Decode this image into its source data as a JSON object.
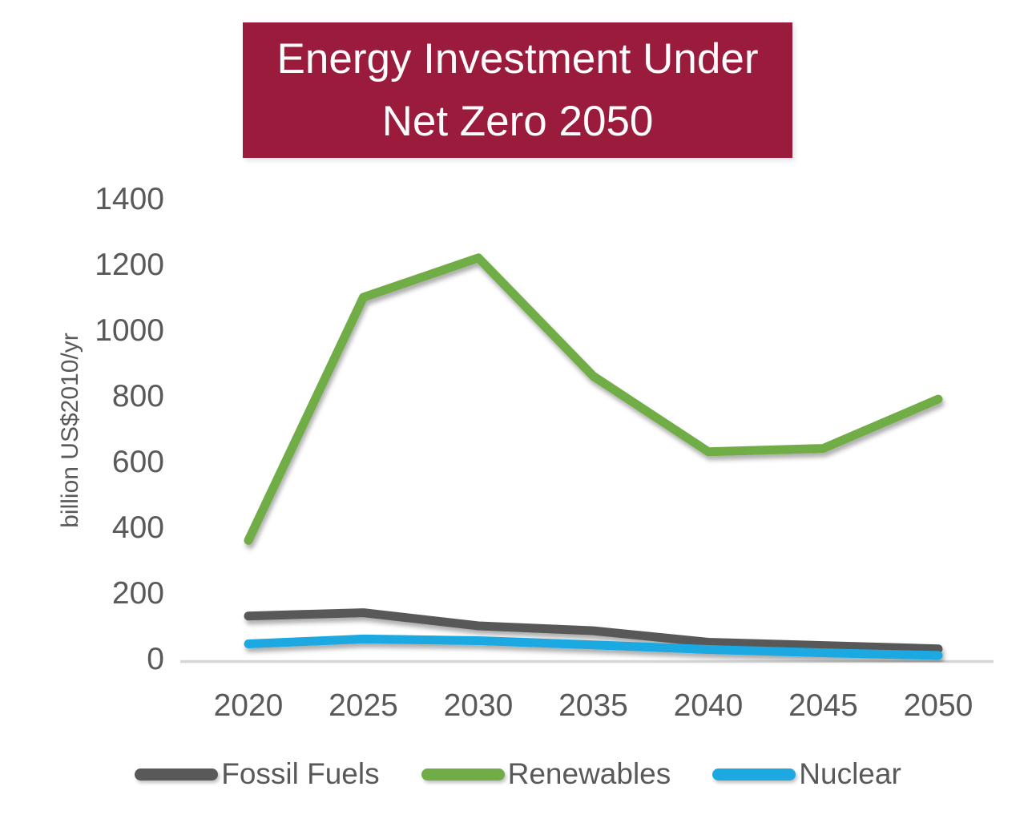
{
  "title": {
    "line1": "Energy Investment Under",
    "line2": "Net Zero 2050"
  },
  "colors": {
    "title_bg": "#9A1B3C",
    "title_text": "#FCFCFC",
    "axis_text": "#595959",
    "axis_line": "#D6D6D6",
    "fossil_fuels": "#595959",
    "renewables": "#70AD47",
    "nuclear": "#1CA8E0"
  },
  "chart_data": {
    "type": "line",
    "title": "Energy Investment Under Net Zero 2050",
    "xlabel": "",
    "ylabel": "billion US$2010/yr",
    "x": [
      2020,
      2025,
      2030,
      2035,
      2040,
      2045,
      2050
    ],
    "series": [
      {
        "name": "Fossil Fuels",
        "color": "#595959",
        "values": [
          130,
          140,
          100,
          85,
          50,
          40,
          30
        ]
      },
      {
        "name": "Renewables",
        "color": "#70AD47",
        "values": [
          360,
          1100,
          1220,
          860,
          630,
          640,
          790
        ]
      },
      {
        "name": "Nuclear",
        "color": "#1CA8E0",
        "values": [
          45,
          60,
          55,
          42,
          28,
          18,
          10
        ]
      }
    ],
    "ylim": [
      0,
      1400
    ],
    "yticks": [
      0,
      200,
      400,
      600,
      800,
      1000,
      1200,
      1400
    ],
    "grid": false,
    "legend_position": "bottom"
  }
}
